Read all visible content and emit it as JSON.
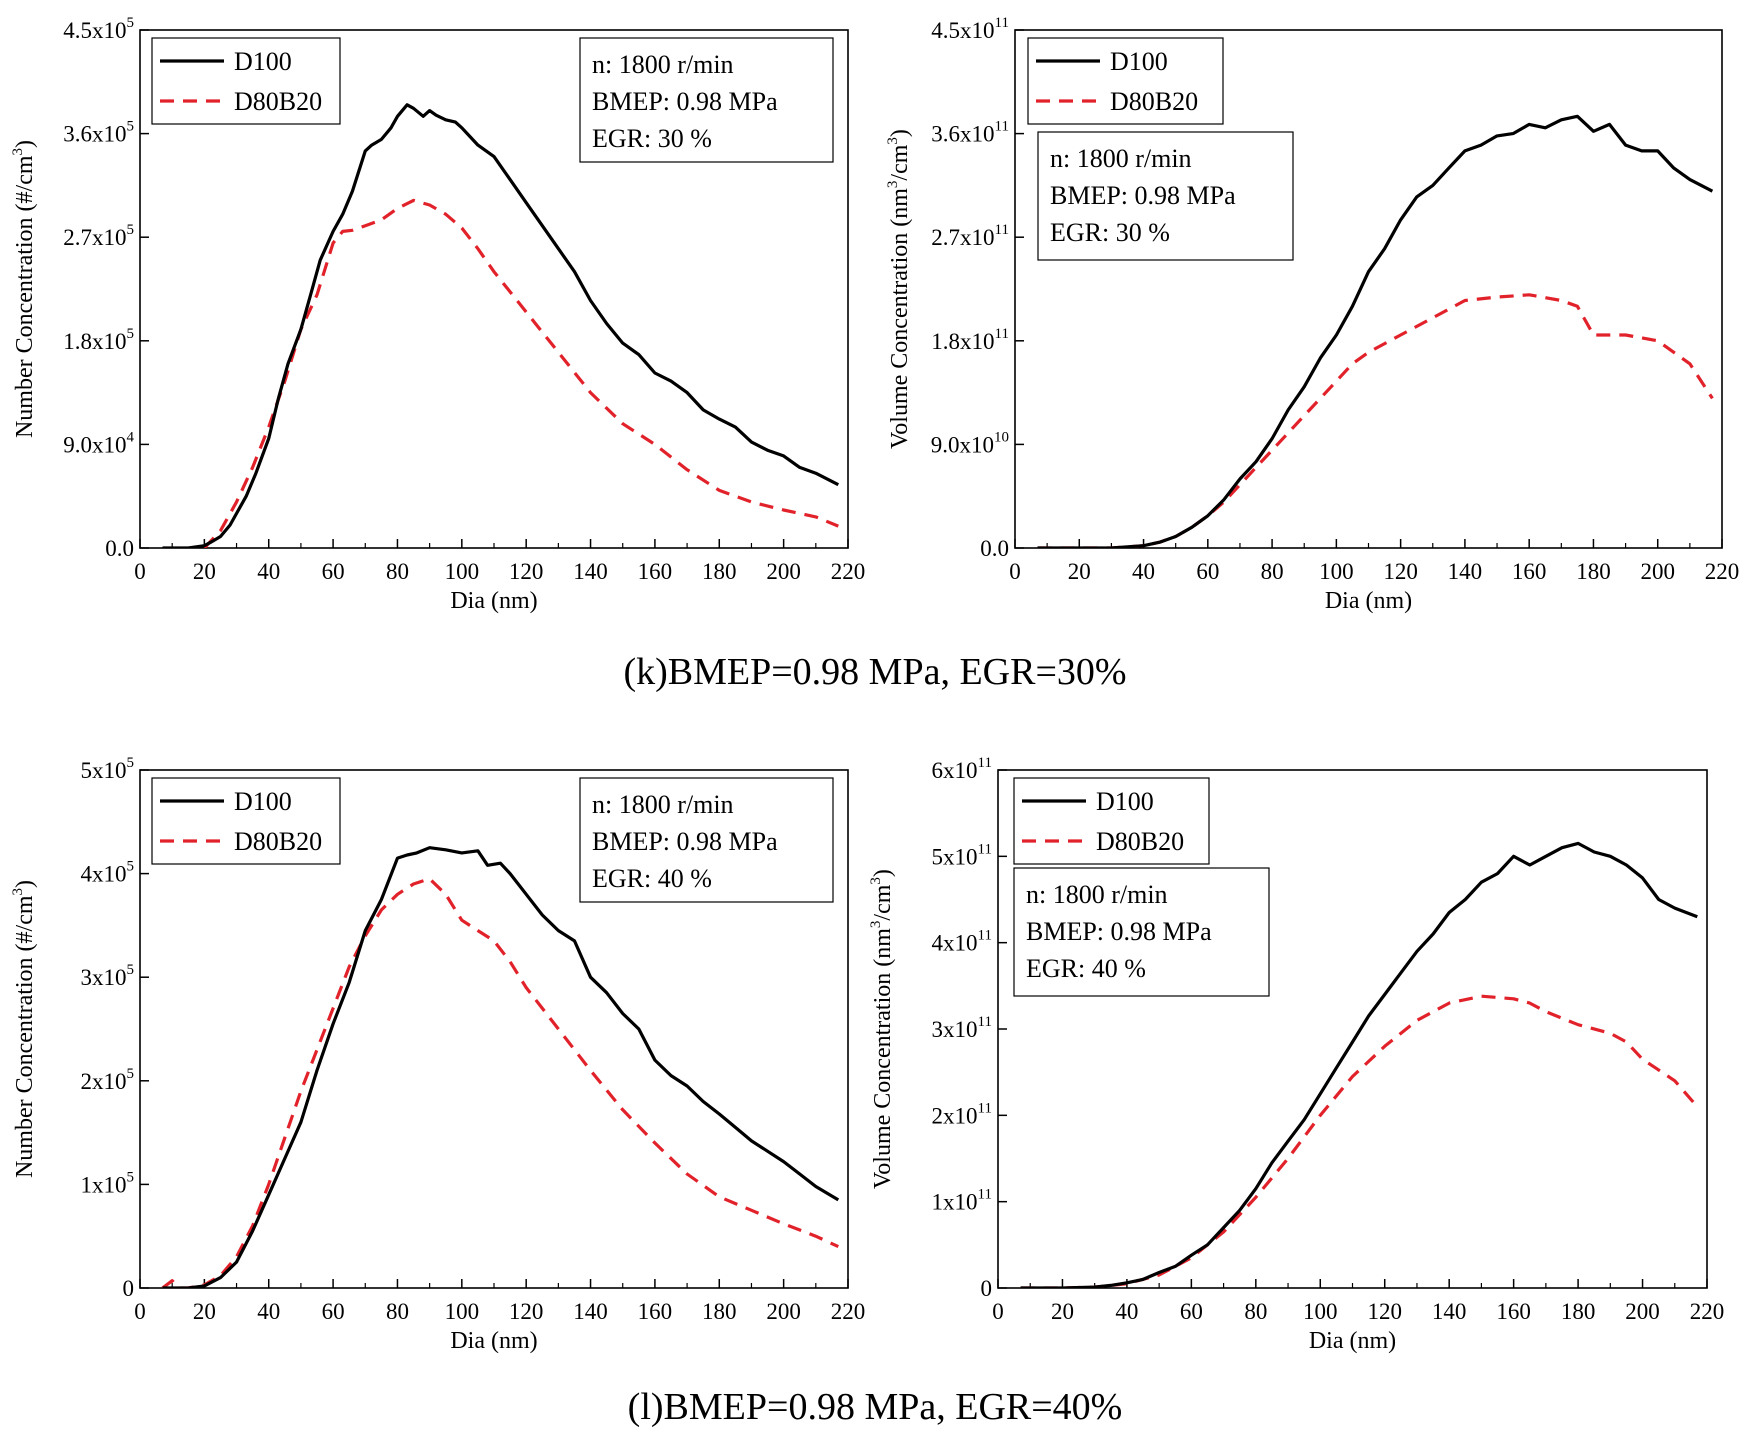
{
  "figure": {
    "captions": [
      "(k)BMEP=0.98 MPa, EGR=30%",
      "(l)BMEP=0.98 MPa, EGR=40%"
    ]
  },
  "chart_data": [
    {
      "type": "line",
      "panel": "k-number",
      "title": "",
      "xlabel": "Dia (nm)",
      "ylabel": {
        "base": "Number Concentration (#/cm",
        "sup": "3",
        "tail": ")"
      },
      "xlim": [
        0,
        220
      ],
      "ylim": [
        0,
        450000
      ],
      "x_ticks": [
        0,
        20,
        40,
        60,
        80,
        100,
        120,
        140,
        160,
        180,
        200,
        220
      ],
      "y_ticks": [
        {
          "value": 0,
          "m": "0.0",
          "e": ""
        },
        {
          "value": 90000,
          "m": "9.0x10",
          "e": "4"
        },
        {
          "value": 180000,
          "m": "1.8x10",
          "e": "5"
        },
        {
          "value": 270000,
          "m": "2.7x10",
          "e": "5"
        },
        {
          "value": 360000,
          "m": "3.6x10",
          "e": "5"
        },
        {
          "value": 450000,
          "m": "4.5x10",
          "e": "5"
        }
      ],
      "legend": {
        "position": "top-left"
      },
      "annotation": {
        "position": "top-right",
        "lines": [
          "n: 1800 r/min",
          "BMEP: 0.98 MPa",
          "EGR: 30 %"
        ]
      },
      "grid": false,
      "series": [
        {
          "name": "D100",
          "color": "#000000",
          "dash": "solid",
          "x": [
            7,
            10,
            15,
            20,
            22,
            25,
            28,
            30,
            33,
            36,
            40,
            43,
            46,
            50,
            53,
            56,
            60,
            63,
            66,
            70,
            72,
            75,
            78,
            80,
            83,
            85,
            88,
            90,
            92,
            95,
            98,
            100,
            105,
            110,
            115,
            120,
            125,
            130,
            135,
            140,
            145,
            150,
            155,
            160,
            165,
            170,
            175,
            180,
            185,
            190,
            195,
            200,
            205,
            210,
            217
          ],
          "y": [
            0,
            0,
            0,
            2000,
            5000,
            10000,
            20000,
            30000,
            45000,
            65000,
            95000,
            130000,
            160000,
            190000,
            220000,
            250000,
            275000,
            290000,
            310000,
            345000,
            350000,
            355000,
            365000,
            375000,
            385000,
            382000,
            375000,
            380000,
            376000,
            372000,
            370000,
            365000,
            350000,
            340000,
            320000,
            300000,
            280000,
            260000,
            240000,
            215000,
            195000,
            178000,
            168000,
            152000,
            145000,
            135000,
            120000,
            112000,
            105000,
            92000,
            85000,
            80000,
            70000,
            65000,
            55000
          ]
        },
        {
          "name": "D80B20",
          "color": "#e2222a",
          "dash": "dashed",
          "x": [
            20,
            25,
            30,
            35,
            40,
            45,
            50,
            55,
            60,
            63,
            66,
            70,
            75,
            80,
            85,
            90,
            95,
            100,
            105,
            110,
            120,
            130,
            140,
            150,
            160,
            170,
            180,
            190,
            200,
            210,
            217
          ],
          "y": [
            0,
            15000,
            40000,
            70000,
            105000,
            145000,
            190000,
            220000,
            265000,
            275000,
            276000,
            280000,
            285000,
            295000,
            302000,
            298000,
            290000,
            278000,
            260000,
            240000,
            205000,
            170000,
            135000,
            108000,
            90000,
            68000,
            50000,
            40000,
            33000,
            27000,
            19000
          ]
        }
      ]
    },
    {
      "type": "line",
      "panel": "k-volume",
      "title": "",
      "xlabel": "Dia (nm)",
      "ylabel": {
        "base": "Volume Concentration (nm",
        "sup": "3",
        "tail": "/cm",
        "sup2": "3",
        "tail2": ")"
      },
      "xlim": [
        0,
        220
      ],
      "ylim": [
        0,
        450000000000
      ],
      "x_ticks": [
        0,
        20,
        40,
        60,
        80,
        100,
        120,
        140,
        160,
        180,
        200,
        220
      ],
      "y_ticks": [
        {
          "value": 0,
          "m": "0.0",
          "e": ""
        },
        {
          "value": 90000000000,
          "m": "9.0x10",
          "e": "10"
        },
        {
          "value": 180000000000,
          "m": "1.8x10",
          "e": "11"
        },
        {
          "value": 270000000000,
          "m": "2.7x10",
          "e": "11"
        },
        {
          "value": 360000000000,
          "m": "3.6x10",
          "e": "11"
        },
        {
          "value": 450000000000,
          "m": "4.5x10",
          "e": "11"
        }
      ],
      "legend": {
        "position": "top-left"
      },
      "annotation": {
        "position": "upper-left",
        "lines": [
          "n: 1800 r/min",
          "BMEP: 0.98 MPa",
          "EGR: 30 %"
        ]
      },
      "grid": false,
      "series": [
        {
          "name": "D100",
          "color": "#000000",
          "dash": "solid",
          "x": [
            7,
            20,
            30,
            35,
            40,
            45,
            50,
            55,
            60,
            65,
            70,
            75,
            80,
            85,
            90,
            95,
            100,
            105,
            110,
            115,
            120,
            125,
            130,
            135,
            140,
            145,
            150,
            155,
            160,
            165,
            170,
            175,
            180,
            185,
            190,
            195,
            200,
            205,
            210,
            217
          ],
          "y": [
            0,
            0,
            0,
            1000000000,
            2000000000,
            5000000000,
            10000000000,
            18000000000,
            28000000000,
            42000000000,
            60000000000,
            75000000000,
            95000000000,
            120000000000,
            140000000000,
            165000000000,
            185000000000,
            210000000000,
            240000000000,
            260000000000,
            285000000000,
            305000000000,
            315000000000,
            330000000000,
            345000000000,
            350000000000,
            358000000000,
            360000000000,
            368000000000,
            365000000000,
            372000000000,
            375000000000,
            362000000000,
            368000000000,
            350000000000,
            345000000000,
            345000000000,
            330000000000,
            320000000000,
            310000000000
          ]
        },
        {
          "name": "D80B20",
          "color": "#e2222a",
          "dash": "dashed",
          "x": [
            7,
            20,
            30,
            35,
            40,
            45,
            50,
            55,
            60,
            65,
            70,
            75,
            80,
            85,
            90,
            95,
            100,
            105,
            110,
            120,
            130,
            140,
            150,
            160,
            170,
            175,
            180,
            190,
            200,
            210,
            217
          ],
          "y": [
            0,
            0,
            0,
            1000000000,
            2000000000,
            5000000000,
            10000000000,
            18000000000,
            28000000000,
            40000000000,
            55000000000,
            70000000000,
            85000000000,
            100000000000,
            115000000000,
            130000000000,
            145000000000,
            160000000000,
            170000000000,
            185000000000,
            200000000000,
            215000000000,
            218000000000,
            220000000000,
            215000000000,
            210000000000,
            185000000000,
            185000000000,
            180000000000,
            160000000000,
            130000000000
          ]
        }
      ]
    },
    {
      "type": "line",
      "panel": "l-number",
      "title": "",
      "xlabel": "Dia (nm)",
      "ylabel": {
        "base": "Number Concentration (#/cm",
        "sup": "3",
        "tail": ")"
      },
      "xlim": [
        0,
        220
      ],
      "ylim": [
        0,
        500000
      ],
      "x_ticks": [
        0,
        20,
        40,
        60,
        80,
        100,
        120,
        140,
        160,
        180,
        200,
        220
      ],
      "y_ticks": [
        {
          "value": 0,
          "m": "0",
          "e": ""
        },
        {
          "value": 100000,
          "m": "1x10",
          "e": "5"
        },
        {
          "value": 200000,
          "m": "2x10",
          "e": "5"
        },
        {
          "value": 300000,
          "m": "3x10",
          "e": "5"
        },
        {
          "value": 400000,
          "m": "4x10",
          "e": "5"
        },
        {
          "value": 500000,
          "m": "5x10",
          "e": "5"
        }
      ],
      "legend": {
        "position": "top-left"
      },
      "annotation": {
        "position": "top-right",
        "lines": [
          "n: 1800 r/min",
          "BMEP: 0.98 MPa",
          "EGR: 40 %"
        ]
      },
      "grid": false,
      "series": [
        {
          "name": "D100",
          "color": "#000000",
          "dash": "solid",
          "x": [
            7,
            10,
            15,
            20,
            25,
            30,
            35,
            40,
            45,
            50,
            55,
            60,
            65,
            70,
            75,
            80,
            83,
            86,
            90,
            95,
            100,
            105,
            108,
            112,
            115,
            120,
            125,
            130,
            135,
            140,
            145,
            150,
            155,
            160,
            165,
            170,
            175,
            180,
            185,
            190,
            195,
            200,
            205,
            210,
            217
          ],
          "y": [
            0,
            0,
            0,
            2000,
            10000,
            25000,
            55000,
            90000,
            125000,
            160000,
            210000,
            255000,
            295000,
            345000,
            375000,
            415000,
            418000,
            420000,
            425000,
            423000,
            420000,
            422000,
            408000,
            410000,
            400000,
            380000,
            360000,
            345000,
            335000,
            300000,
            285000,
            265000,
            250000,
            220000,
            205000,
            195000,
            180000,
            168000,
            155000,
            142000,
            132000,
            122000,
            110000,
            98000,
            85000
          ]
        },
        {
          "name": "D80B20",
          "color": "#e2222a",
          "dash": "dashed",
          "x": [
            7,
            10,
            12,
            15,
            20,
            25,
            30,
            35,
            40,
            45,
            50,
            55,
            60,
            65,
            70,
            75,
            80,
            85,
            90,
            95,
            100,
            105,
            110,
            115,
            120,
            130,
            140,
            150,
            160,
            170,
            180,
            190,
            200,
            210,
            217
          ],
          "y": [
            0,
            7000,
            0,
            0,
            3000,
            12000,
            30000,
            60000,
            100000,
            145000,
            190000,
            230000,
            270000,
            310000,
            340000,
            365000,
            380000,
            390000,
            395000,
            380000,
            355000,
            345000,
            335000,
            315000,
            290000,
            250000,
            210000,
            172000,
            140000,
            110000,
            88000,
            75000,
            62000,
            50000,
            40000
          ]
        }
      ]
    },
    {
      "type": "line",
      "panel": "l-volume",
      "title": "",
      "xlabel": "Dia (nm)",
      "ylabel": {
        "base": "Volume Concentration (nm",
        "sup": "3",
        "tail": "/cm",
        "sup2": "3",
        "tail2": ")"
      },
      "xlim": [
        0,
        220
      ],
      "ylim": [
        0,
        600000000000
      ],
      "x_ticks": [
        0,
        20,
        40,
        60,
        80,
        100,
        120,
        140,
        160,
        180,
        200,
        220
      ],
      "y_ticks": [
        {
          "value": 0,
          "m": "0",
          "e": ""
        },
        {
          "value": 100000000000,
          "m": "1x10",
          "e": "11"
        },
        {
          "value": 200000000000,
          "m": "2x10",
          "e": "11"
        },
        {
          "value": 300000000000,
          "m": "3x10",
          "e": "11"
        },
        {
          "value": 400000000000,
          "m": "4x10",
          "e": "11"
        },
        {
          "value": 500000000000,
          "m": "5x10",
          "e": "11"
        },
        {
          "value": 600000000000,
          "m": "6x10",
          "e": "11"
        }
      ],
      "legend": {
        "position": "top-left"
      },
      "annotation": {
        "position": "upper-left",
        "lines": [
          "n: 1800 r/min",
          "BMEP: 0.98 MPa",
          "EGR: 40 %"
        ]
      },
      "grid": false,
      "series": [
        {
          "name": "D100",
          "color": "#000000",
          "dash": "solid",
          "x": [
            7,
            20,
            30,
            35,
            40,
            45,
            50,
            55,
            60,
            65,
            70,
            75,
            80,
            85,
            90,
            95,
            100,
            105,
            110,
            115,
            120,
            125,
            130,
            135,
            140,
            145,
            150,
            155,
            160,
            165,
            170,
            175,
            180,
            185,
            190,
            195,
            200,
            205,
            210,
            217
          ],
          "y": [
            0,
            0,
            1000000000,
            3000000000,
            6000000000,
            10000000000,
            18000000000,
            25000000000,
            38000000000,
            50000000000,
            70000000000,
            90000000000,
            115000000000,
            145000000000,
            170000000000,
            195000000000,
            225000000000,
            255000000000,
            285000000000,
            315000000000,
            340000000000,
            365000000000,
            390000000000,
            410000000000,
            435000000000,
            450000000000,
            470000000000,
            480000000000,
            500000000000,
            490000000000,
            500000000000,
            510000000000,
            515000000000,
            505000000000,
            500000000000,
            490000000000,
            475000000000,
            450000000000,
            440000000000,
            430000000000
          ]
        },
        {
          "name": "D80B20",
          "color": "#e2222a",
          "dash": "dashed",
          "x": [
            7,
            20,
            30,
            40,
            50,
            60,
            70,
            80,
            90,
            100,
            110,
            120,
            130,
            140,
            150,
            160,
            165,
            170,
            180,
            190,
            195,
            200,
            210,
            217
          ],
          "y": [
            0,
            0,
            1000000000,
            5000000000,
            15000000000,
            35000000000,
            65000000000,
            105000000000,
            150000000000,
            200000000000,
            245000000000,
            280000000000,
            310000000000,
            330000000000,
            338000000000,
            335000000000,
            330000000000,
            320000000000,
            305000000000,
            295000000000,
            285000000000,
            265000000000,
            240000000000,
            210000000000
          ]
        }
      ]
    }
  ]
}
